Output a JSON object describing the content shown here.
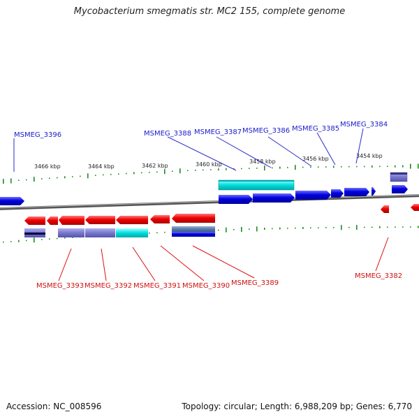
{
  "title": "Mycobacterium smegmatis str. MC2 155, complete genome",
  "footer": {
    "accession": "Accession: NC_008596",
    "summary": "Topology: circular; Length: 6,988,209 bp; Genes: 6,770"
  },
  "scale": {
    "ticks": [
      {
        "label": "3466 kbp"
      },
      {
        "label": "3464 kbp"
      },
      {
        "label": "3462 kbp"
      },
      {
        "label": "3460 kbp"
      },
      {
        "label": "3458 kbp"
      },
      {
        "label": "3456 kbp"
      },
      {
        "label": "3454 kbp"
      }
    ]
  },
  "forward_genes": [
    {
      "label": "MSMEG_3396"
    },
    {
      "label": "MSMEG_3388"
    },
    {
      "label": "MSMEG_3387"
    },
    {
      "label": "MSMEG_3386"
    },
    {
      "label": "MSMEG_3385"
    },
    {
      "label": "MSMEG_3384"
    }
  ],
  "reverse_genes": [
    {
      "label": "MSMEG_3393"
    },
    {
      "label": "MSMEG_3392"
    },
    {
      "label": "MSMEG_3391"
    },
    {
      "label": "MSMEG_3390"
    },
    {
      "label": "MSMEG_3389"
    },
    {
      "label": "MSMEG_3382"
    }
  ],
  "colors": {
    "forward_gene": "#0000dd",
    "reverse_gene": "#ee0000",
    "cds_feature": "#00dddd",
    "other_feature": "#7777cc",
    "backbone": "#777777",
    "gc_tick": "#228822"
  }
}
